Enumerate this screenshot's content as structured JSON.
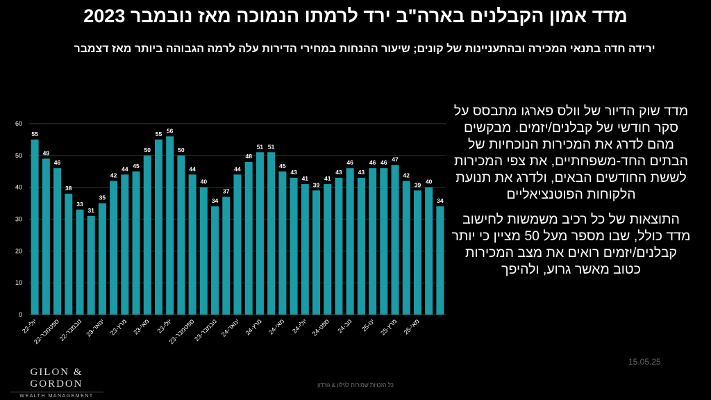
{
  "title": "מדד אמון הקבלנים בארה\"ב ירד לרמתו הנמוכה מאז נובמבר 2023",
  "subtitle": "ירידה חדה בתנאי המכירה ובהתעניינות של קונים; שיעור ההנחות במחירי הדירות עלה לרמה הגבוהה ביותר מאז דצמבר",
  "chart_data": {
    "type": "bar",
    "categories": [
      "יולי-22",
      null,
      "ספטמבר-22",
      null,
      "נובמבר-22",
      null,
      "ינואר-23",
      null,
      "מרץ-23",
      null,
      "מאי-23",
      null,
      "יולי-23",
      null,
      "ספטמבר-23",
      null,
      "נובמבר-23",
      null,
      "ינואר-24",
      null,
      "מרץ-24",
      null,
      "מאי-24",
      null,
      "יולי-24",
      null,
      "ספט-24",
      null,
      "נוב-24",
      null,
      "ינו-25",
      null,
      "מרץ-25",
      null,
      "מאי-25",
      null,
      null
    ],
    "values": [
      55,
      49,
      46,
      38,
      33,
      31,
      35,
      42,
      44,
      45,
      50,
      55,
      56,
      50,
      44,
      40,
      34,
      37,
      44,
      48,
      51,
      51,
      45,
      43,
      41,
      39,
      41,
      43,
      46,
      43,
      46,
      46,
      47,
      42,
      39,
      40,
      34
    ],
    "color": "#1a9ba6",
    "ylim": [
      0,
      60
    ],
    "yticks": [
      0,
      10,
      20,
      30,
      40,
      50,
      60
    ],
    "grid": true
  },
  "description": [
    "מדד שוק הדיור של וולס פארגו מתבסס על סקר חודשי של קבלנים/יזמים. מבקשים מהם לדרג את המכירות הנוכחיות של הבתים החד-משפחתיים, את צפי המכירות לששת החודשים הבאים, ולדרג את תנועת הלקוחות הפוטנציאליים",
    "התוצאות של כל רכיב משמשות לחישוב מדד כולל, שבו מספר מעל 50 מציין כי יותר קבלנים/יזמים רואים את מצב המכירות כטוב מאשר גרוע, ולהיפך"
  ],
  "date": "15.05.25",
  "logo": {
    "name": "GILON & GORDON",
    "tagline": "WEALTH MANAGEMENT"
  },
  "footer": "כל הזכויות שמורות לגילון & גורדון"
}
